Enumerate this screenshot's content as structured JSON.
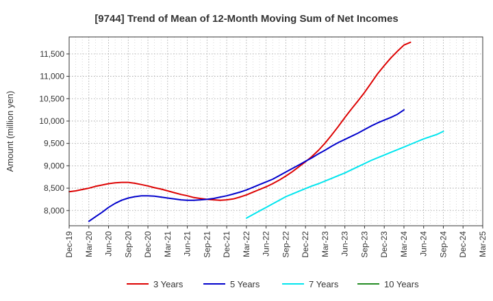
{
  "chart_data": {
    "type": "line",
    "title": "[9744]  Trend of Mean of 12-Month Moving Sum of Net Incomes",
    "ylabel": "Amount (million yen)",
    "xlabel": "",
    "x_ticks": [
      "Dec-19",
      "Mar-20",
      "Jun-20",
      "Sep-20",
      "Dec-20",
      "Mar-21",
      "Jun-21",
      "Sep-21",
      "Dec-21",
      "Mar-22",
      "Jun-22",
      "Sep-22",
      "Dec-22",
      "Mar-23",
      "Jun-23",
      "Sep-23",
      "Dec-23",
      "Mar-24",
      "Jun-24",
      "Sep-24",
      "Dec-24",
      "Mar-25"
    ],
    "y_ticks": [
      8000,
      8500,
      9000,
      9500,
      10000,
      10500,
      11000,
      11500
    ],
    "y_tick_labels": [
      "8,000",
      "8,500",
      "9,000",
      "9,500",
      "10,000",
      "10,500",
      "11,000",
      "11,500"
    ],
    "ylim": [
      7660,
      11880
    ],
    "grid": true,
    "legend_position": "bottom",
    "series": [
      {
        "name": "3 Years",
        "color": "#dd0000",
        "start": "Dec-19",
        "values": [
          8420,
          8440,
          8470,
          8500,
          8540,
          8570,
          8600,
          8620,
          8630,
          8630,
          8610,
          8580,
          8550,
          8510,
          8480,
          8440,
          8400,
          8360,
          8330,
          8290,
          8270,
          8250,
          8240,
          8230,
          8240,
          8260,
          8300,
          8350,
          8410,
          8470,
          8530,
          8600,
          8680,
          8770,
          8870,
          8980,
          9090,
          9210,
          9350,
          9510,
          9690,
          9880,
          10080,
          10270,
          10450,
          10640,
          10850,
          11060,
          11240,
          11410,
          11560,
          11700,
          11760
        ]
      },
      {
        "name": "5 Years",
        "color": "#0000cc",
        "start": "Mar-20",
        "values": [
          7760,
          7860,
          7960,
          8070,
          8160,
          8230,
          8280,
          8310,
          8330,
          8330,
          8320,
          8300,
          8280,
          8260,
          8240,
          8230,
          8230,
          8240,
          8250,
          8270,
          8300,
          8330,
          8370,
          8410,
          8460,
          8520,
          8580,
          8640,
          8700,
          8780,
          8860,
          8940,
          9020,
          9100,
          9180,
          9270,
          9350,
          9440,
          9520,
          9590,
          9660,
          9730,
          9810,
          9890,
          9960,
          10020,
          10080,
          10150,
          10250
        ]
      },
      {
        "name": "7 Years",
        "color": "#00e5ee",
        "start": "Mar-22",
        "values": [
          7830,
          7910,
          7990,
          8070,
          8150,
          8230,
          8310,
          8370,
          8430,
          8490,
          8550,
          8600,
          8660,
          8720,
          8780,
          8840,
          8910,
          8980,
          9050,
          9120,
          9180,
          9240,
          9300,
          9360,
          9420,
          9480,
          9540,
          9600,
          9650,
          9700,
          9770
        ]
      },
      {
        "name": "10 Years",
        "color": "#228b22",
        "start": "Dec-24",
        "values": []
      }
    ]
  }
}
